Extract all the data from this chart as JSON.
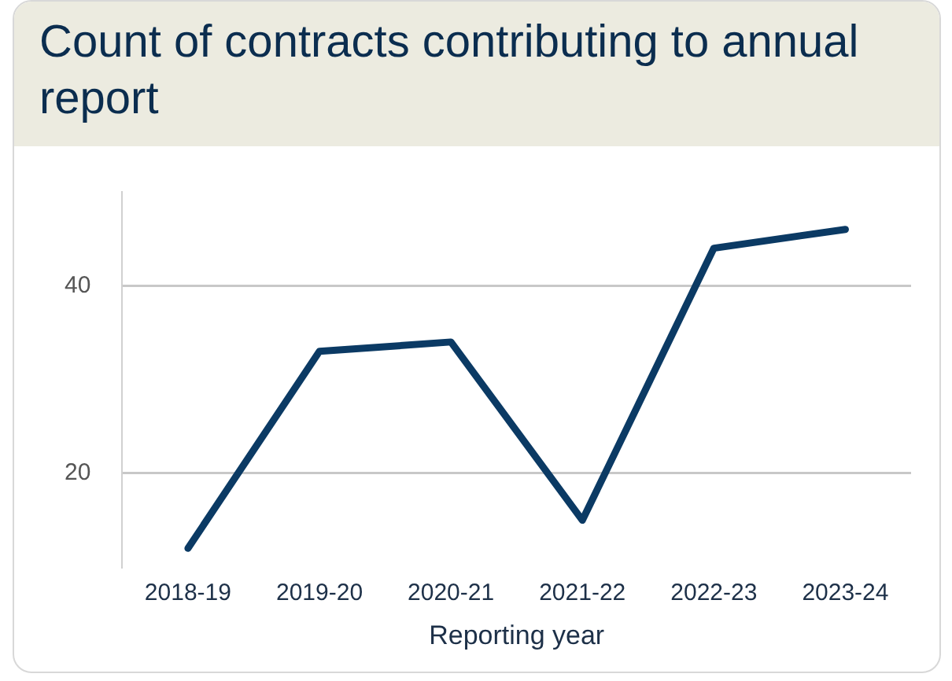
{
  "chart_data": {
    "type": "line",
    "title": "Count of contracts contributing to annual report",
    "xlabel": "Reporting year",
    "categories": [
      "2018-19",
      "2019-20",
      "2020-21",
      "2021-22",
      "2022-23",
      "2023-24"
    ],
    "series": [
      {
        "color": "#0b3a64",
        "values": [
          12,
          33,
          34,
          15,
          44,
          46
        ]
      }
    ],
    "ylim": [
      10,
      50
    ],
    "yticks": [
      20,
      40
    ],
    "grid": "y",
    "legend": false,
    "marker": "none",
    "line_style": "solid"
  }
}
